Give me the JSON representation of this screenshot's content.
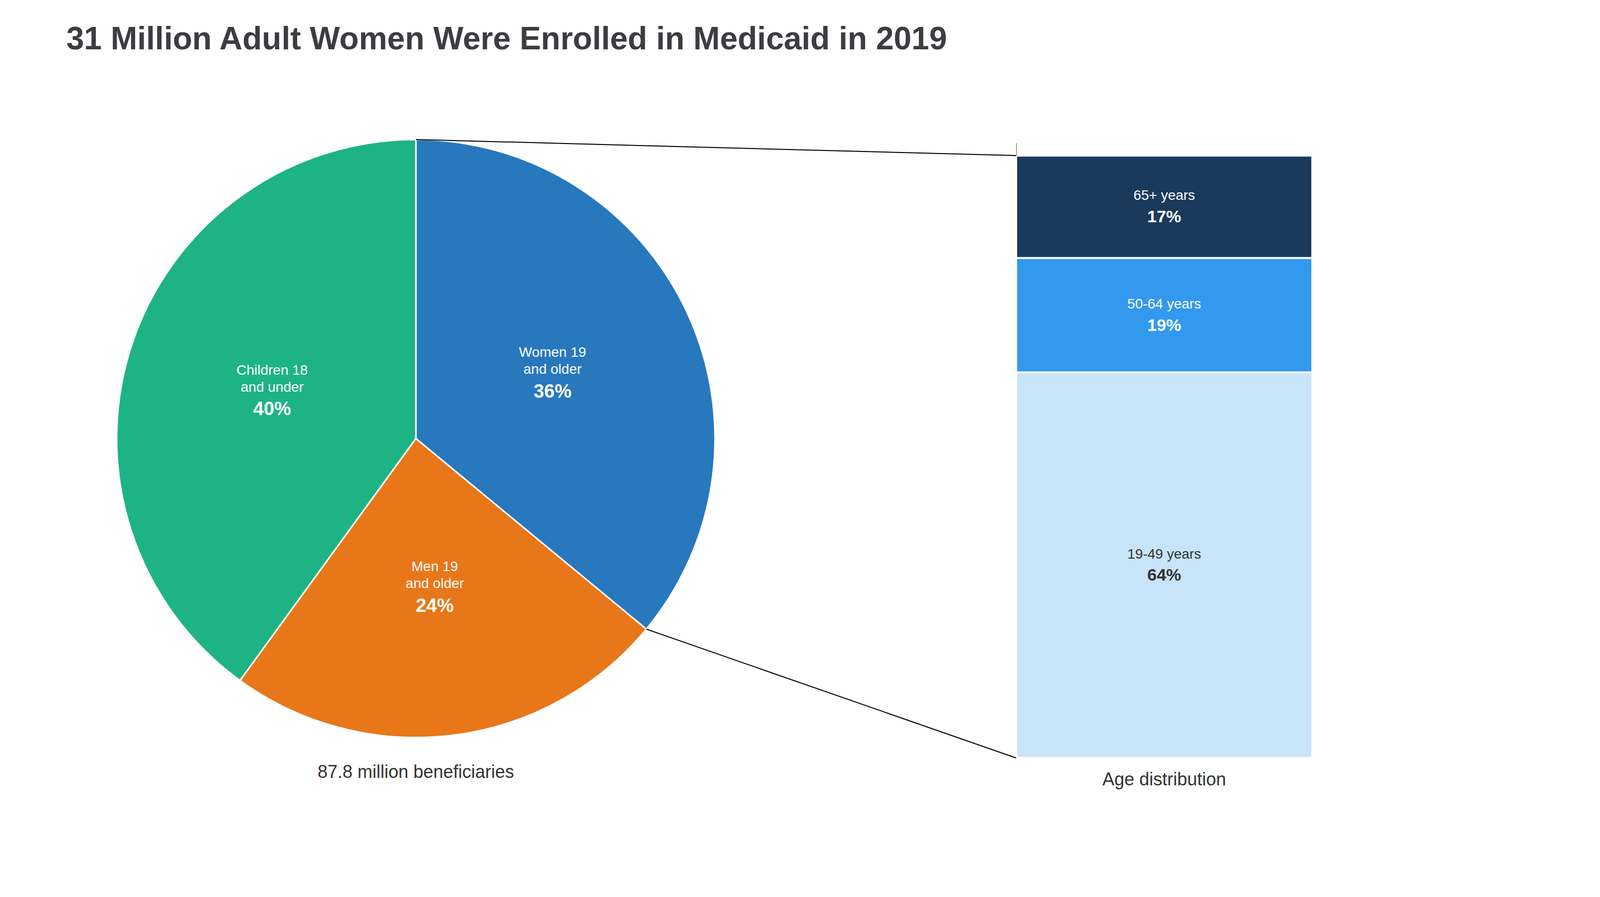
{
  "chart_data": [
    {
      "type": "pie",
      "title": "31 Million Adult Women Were Enrolled in Medicaid in 2019",
      "categories": [
        "Women 19\nand older",
        "Men 19\nand older",
        "Children 18\nand under"
      ],
      "values": [
        36,
        24,
        40
      ],
      "value_labels": [
        "36%",
        "24%",
        "40%"
      ],
      "colors": [
        "#2878BD",
        "#E8771A",
        "#1DB385"
      ],
      "data_labels": true,
      "annotations": [
        "87.8 million beneficiaries"
      ]
    },
    {
      "type": "bar",
      "stacked": true,
      "categories": [
        null
      ],
      "series": [
        {
          "name": "19-49 years",
          "color": "#c8e4f8",
          "values": [
            64
          ],
          "value_labels": [
            "64%"
          ]
        },
        {
          "name": "50-64 years",
          "color": "#3399ee",
          "values": [
            19
          ],
          "value_labels": [
            "19%"
          ]
        },
        {
          "name": "65+ years",
          "color": "#1a3a5c",
          "values": [
            17
          ],
          "value_labels": [
            "17%"
          ]
        }
      ],
      "ylim": [
        0,
        102
      ],
      "grid": false,
      "tick_labels": false,
      "data_labels": true,
      "annotations": [
        "Age distribution"
      ]
    }
  ]
}
